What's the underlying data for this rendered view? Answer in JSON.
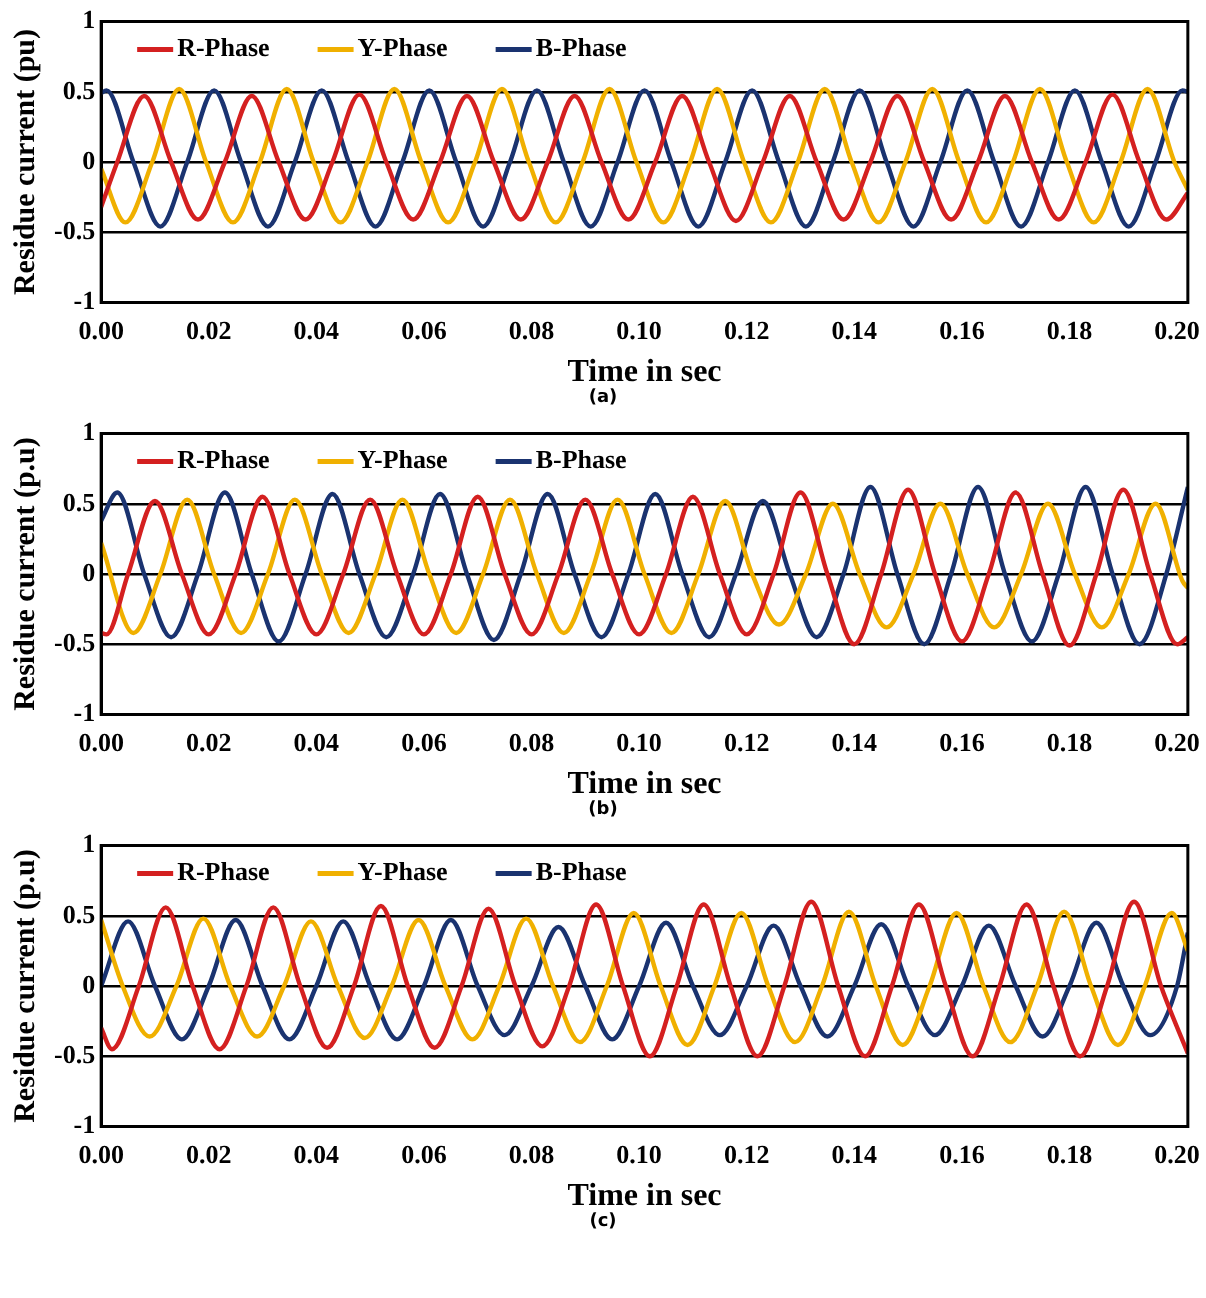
{
  "chart_data": [
    {
      "type": "line",
      "xlabel": "Time in sec",
      "ylabel": "Residue current (pu)",
      "annotations": [
        "(a)"
      ],
      "xlim": [
        0,
        0.202
      ],
      "ylim": [
        -1,
        1
      ],
      "xticks": [
        {
          "value": 0,
          "label": "0.00"
        },
        {
          "value": 0.02,
          "label": "0.02"
        },
        {
          "value": 0.04,
          "label": "0.04"
        },
        {
          "value": 0.06,
          "label": "0.06"
        },
        {
          "value": 0.08,
          "label": "0.08"
        },
        {
          "value": 0.1,
          "label": "0.10"
        },
        {
          "value": 0.12,
          "label": "0.12"
        },
        {
          "value": 0.14,
          "label": "0.14"
        },
        {
          "value": 0.16,
          "label": "0.16"
        },
        {
          "value": 0.18,
          "label": "0.18"
        },
        {
          "value": 0.2,
          "label": "0.20"
        }
      ],
      "yticks": [
        -1,
        -0.5,
        0,
        0.5,
        1
      ],
      "grid": "y",
      "legend": "top left",
      "marker": "none",
      "line_style": "solid",
      "series": [
        {
          "name": "R-Phase",
          "color": "#d42020",
          "x": [
            0,
            0.003,
            0.008,
            0.013,
            0.018,
            0.023,
            0.028,
            0.033,
            0.038,
            0.043,
            0.048,
            0.053,
            0.058,
            0.063,
            0.068,
            0.073,
            0.078,
            0.083,
            0.088,
            0.093,
            0.098,
            0.103,
            0.108,
            0.113,
            0.118,
            0.123,
            0.128,
            0.133,
            0.138,
            0.143,
            0.148,
            0.153,
            0.158,
            0.163,
            0.168,
            0.173,
            0.178,
            0.183,
            0.188,
            0.193,
            0.198,
            0.202
          ],
          "values": [
            -0.32,
            0,
            0.47,
            0,
            -0.41,
            0,
            0.47,
            0,
            -0.41,
            0,
            0.48,
            0,
            -0.41,
            0,
            0.47,
            0,
            -0.41,
            0,
            0.47,
            0,
            -0.41,
            0,
            0.47,
            0,
            -0.42,
            0,
            0.47,
            0,
            -0.41,
            0,
            0.47,
            0,
            -0.41,
            0,
            0.47,
            0,
            -0.41,
            0,
            0.48,
            0,
            -0.41,
            -0.22
          ]
        },
        {
          "name": "Y-Phase",
          "color": "#f0b000",
          "x": [
            0,
            0.0045,
            0.0095,
            0.0145,
            0.0195,
            0.0245,
            0.0295,
            0.0345,
            0.0395,
            0.0445,
            0.0495,
            0.0545,
            0.0595,
            0.0645,
            0.0695,
            0.0745,
            0.0795,
            0.0845,
            0.0895,
            0.0945,
            0.0995,
            0.1045,
            0.1095,
            0.1145,
            0.1195,
            0.1245,
            0.1295,
            0.1345,
            0.1395,
            0.1445,
            0.1495,
            0.1545,
            0.1595,
            0.1645,
            0.1695,
            0.1745,
            0.1795,
            0.1845,
            0.1895,
            0.1945,
            0.1995,
            0.202
          ],
          "values": [
            -0.05,
            -0.43,
            0,
            0.52,
            0,
            -0.43,
            0,
            0.52,
            0,
            -0.43,
            0,
            0.52,
            0,
            -0.43,
            0,
            0.52,
            0,
            -0.43,
            0,
            0.52,
            0,
            -0.43,
            0,
            0.52,
            0,
            -0.43,
            0,
            0.52,
            0,
            -0.43,
            0,
            0.52,
            0,
            -0.43,
            0,
            0.52,
            0,
            -0.43,
            0,
            0.52,
            0,
            -0.2
          ]
        },
        {
          "name": "B-Phase",
          "color": "#1a3370",
          "x": [
            0,
            0.001,
            0.006,
            0.011,
            0.016,
            0.021,
            0.026,
            0.031,
            0.036,
            0.041,
            0.046,
            0.051,
            0.056,
            0.061,
            0.066,
            0.071,
            0.076,
            0.081,
            0.086,
            0.091,
            0.096,
            0.101,
            0.106,
            0.111,
            0.116,
            0.121,
            0.126,
            0.131,
            0.136,
            0.141,
            0.146,
            0.151,
            0.156,
            0.161,
            0.166,
            0.171,
            0.176,
            0.181,
            0.186,
            0.191,
            0.196,
            0.201,
            0.202
          ],
          "values": [
            0.49,
            0.51,
            0,
            -0.46,
            0,
            0.51,
            0,
            -0.46,
            0,
            0.51,
            0,
            -0.46,
            0,
            0.51,
            0,
            -0.46,
            0,
            0.51,
            0,
            -0.46,
            0,
            0.51,
            0,
            -0.46,
            0,
            0.51,
            0,
            -0.46,
            0,
            0.51,
            0,
            -0.46,
            0,
            0.51,
            0,
            -0.46,
            0,
            0.51,
            0,
            -0.46,
            0,
            0.51,
            0.5
          ]
        }
      ]
    },
    {
      "type": "line",
      "xlabel": "Time in sec",
      "ylabel": "Residue current (p.u)",
      "annotations": [
        "(b)"
      ],
      "xlim": [
        0,
        0.202
      ],
      "ylim": [
        -1,
        1
      ],
      "xticks": [
        {
          "value": 0,
          "label": "0.00"
        },
        {
          "value": 0.02,
          "label": "0.02"
        },
        {
          "value": 0.04,
          "label": "0.04"
        },
        {
          "value": 0.06,
          "label": "0.06"
        },
        {
          "value": 0.08,
          "label": "0.08"
        },
        {
          "value": 0.1,
          "label": "0.10"
        },
        {
          "value": 0.12,
          "label": "0.12"
        },
        {
          "value": 0.14,
          "label": "0.14"
        },
        {
          "value": 0.16,
          "label": "0.16"
        },
        {
          "value": 0.18,
          "label": "0.18"
        },
        {
          "value": 0.2,
          "label": "0.20"
        }
      ],
      "yticks": [
        -1,
        -0.5,
        0,
        0.5,
        1
      ],
      "grid": "y",
      "legend": "top left",
      "marker": "none",
      "line_style": "solid",
      "series": [
        {
          "name": "R-Phase",
          "color": "#d42020",
          "x": [
            0,
            0.001,
            0.005,
            0.01,
            0.015,
            0.02,
            0.025,
            0.03,
            0.035,
            0.04,
            0.045,
            0.05,
            0.055,
            0.06,
            0.065,
            0.07,
            0.075,
            0.08,
            0.085,
            0.09,
            0.095,
            0.1,
            0.105,
            0.11,
            0.115,
            0.12,
            0.125,
            0.13,
            0.135,
            0.14,
            0.145,
            0.15,
            0.155,
            0.16,
            0.165,
            0.17,
            0.175,
            0.18,
            0.185,
            0.19,
            0.195,
            0.2,
            0.202
          ],
          "values": [
            -0.42,
            -0.43,
            0,
            0.52,
            0,
            -0.43,
            0,
            0.55,
            0,
            -0.43,
            0,
            0.53,
            0,
            -0.43,
            0,
            0.55,
            0,
            -0.43,
            0,
            0.53,
            0,
            -0.43,
            0,
            0.55,
            0,
            -0.43,
            0,
            0.58,
            0,
            -0.5,
            0,
            0.6,
            0,
            -0.48,
            0,
            0.58,
            0,
            -0.51,
            0,
            0.6,
            0,
            -0.5,
            -0.45
          ]
        },
        {
          "name": "Y-Phase",
          "color": "#f0b000",
          "x": [
            0,
            0.006,
            0.011,
            0.016,
            0.021,
            0.026,
            0.031,
            0.036,
            0.041,
            0.046,
            0.051,
            0.056,
            0.061,
            0.066,
            0.071,
            0.076,
            0.081,
            0.086,
            0.091,
            0.096,
            0.101,
            0.106,
            0.111,
            0.116,
            0.121,
            0.126,
            0.131,
            0.136,
            0.141,
            0.146,
            0.151,
            0.156,
            0.161,
            0.166,
            0.171,
            0.176,
            0.181,
            0.186,
            0.191,
            0.196,
            0.201,
            0.202
          ],
          "values": [
            0.22,
            -0.42,
            0,
            0.53,
            0,
            -0.42,
            0,
            0.53,
            0,
            -0.42,
            0,
            0.53,
            0,
            -0.42,
            0,
            0.53,
            0,
            -0.42,
            0,
            0.53,
            0,
            -0.42,
            0,
            0.52,
            0,
            -0.36,
            0,
            0.5,
            0,
            -0.38,
            0,
            0.5,
            0,
            -0.38,
            0,
            0.5,
            0,
            -0.38,
            0,
            0.5,
            -0.05,
            -0.1
          ]
        },
        {
          "name": "B-Phase",
          "color": "#1a3370",
          "x": [
            0,
            0.003,
            0.008,
            0.013,
            0.018,
            0.023,
            0.028,
            0.033,
            0.038,
            0.043,
            0.048,
            0.053,
            0.058,
            0.063,
            0.068,
            0.073,
            0.078,
            0.083,
            0.088,
            0.093,
            0.098,
            0.103,
            0.108,
            0.113,
            0.118,
            0.123,
            0.128,
            0.133,
            0.138,
            0.143,
            0.148,
            0.153,
            0.158,
            0.163,
            0.168,
            0.173,
            0.178,
            0.183,
            0.188,
            0.193,
            0.198,
            0.202
          ],
          "values": [
            0.38,
            0.58,
            0,
            -0.45,
            0,
            0.58,
            0,
            -0.48,
            0,
            0.57,
            0,
            -0.45,
            0,
            0.57,
            0,
            -0.47,
            0,
            0.57,
            0,
            -0.45,
            0,
            0.57,
            0,
            -0.45,
            0,
            0.52,
            0,
            -0.45,
            0,
            0.62,
            0,
            -0.5,
            0,
            0.62,
            0,
            -0.48,
            0,
            0.62,
            0,
            -0.5,
            0,
            0.62
          ]
        }
      ]
    },
    {
      "type": "line",
      "xlabel": "Time in sec",
      "ylabel": "Residue current (p.u)",
      "annotations": [
        "(c)"
      ],
      "xlim": [
        0,
        0.202
      ],
      "ylim": [
        -1,
        1
      ],
      "xticks": [
        {
          "value": 0,
          "label": "0.00"
        },
        {
          "value": 0.02,
          "label": "0.02"
        },
        {
          "value": 0.04,
          "label": "0.04"
        },
        {
          "value": 0.06,
          "label": "0.06"
        },
        {
          "value": 0.08,
          "label": "0.08"
        },
        {
          "value": 0.1,
          "label": "0.10"
        },
        {
          "value": 0.12,
          "label": "0.12"
        },
        {
          "value": 0.14,
          "label": "0.14"
        },
        {
          "value": 0.16,
          "label": "0.16"
        },
        {
          "value": 0.18,
          "label": "0.18"
        },
        {
          "value": 0.2,
          "label": "0.20"
        }
      ],
      "yticks": [
        -1,
        -0.5,
        0,
        0.5,
        1
      ],
      "grid": "y",
      "legend": "top left",
      "marker": "none",
      "line_style": "solid",
      "series": [
        {
          "name": "R-Phase",
          "color": "#d42020",
          "x": [
            0,
            0.002,
            0.007,
            0.012,
            0.017,
            0.022,
            0.027,
            0.032,
            0.037,
            0.042,
            0.047,
            0.052,
            0.057,
            0.062,
            0.067,
            0.072,
            0.077,
            0.082,
            0.087,
            0.092,
            0.097,
            0.102,
            0.107,
            0.112,
            0.117,
            0.122,
            0.127,
            0.132,
            0.137,
            0.142,
            0.147,
            0.152,
            0.157,
            0.162,
            0.167,
            0.172,
            0.177,
            0.182,
            0.187,
            0.192,
            0.197,
            0.202
          ],
          "values": [
            -0.3,
            -0.45,
            0,
            0.56,
            0,
            -0.45,
            0,
            0.56,
            0,
            -0.44,
            0,
            0.57,
            0,
            -0.44,
            0,
            0.55,
            0,
            -0.43,
            0,
            0.58,
            0,
            -0.5,
            0,
            0.58,
            0,
            -0.5,
            0,
            0.6,
            0,
            -0.5,
            0,
            0.58,
            0,
            -0.5,
            0,
            0.58,
            0,
            -0.5,
            0,
            0.6,
            0,
            -0.48
          ]
        },
        {
          "name": "Y-Phase",
          "color": "#f0b000",
          "x": [
            0,
            0.004,
            0.009,
            0.014,
            0.019,
            0.024,
            0.029,
            0.034,
            0.039,
            0.044,
            0.049,
            0.054,
            0.059,
            0.064,
            0.069,
            0.074,
            0.079,
            0.084,
            0.089,
            0.094,
            0.099,
            0.104,
            0.109,
            0.114,
            0.119,
            0.124,
            0.129,
            0.134,
            0.139,
            0.144,
            0.149,
            0.154,
            0.159,
            0.164,
            0.169,
            0.174,
            0.179,
            0.184,
            0.189,
            0.194,
            0.199,
            0.202
          ],
          "values": [
            0.47,
            0,
            -0.36,
            0,
            0.48,
            0,
            -0.36,
            0,
            0.46,
            0,
            -0.37,
            0,
            0.47,
            0,
            -0.38,
            0,
            0.48,
            0,
            -0.4,
            0,
            0.52,
            0,
            -0.42,
            0,
            0.52,
            0,
            -0.4,
            0,
            0.53,
            0,
            -0.42,
            0,
            0.52,
            0,
            -0.4,
            0,
            0.53,
            0,
            -0.42,
            0,
            0.52,
            0.25
          ]
        },
        {
          "name": "B-Phase",
          "color": "#1a3370",
          "x": [
            0,
            0.005,
            0.01,
            0.015,
            0.02,
            0.025,
            0.03,
            0.035,
            0.04,
            0.045,
            0.05,
            0.055,
            0.06,
            0.065,
            0.07,
            0.075,
            0.08,
            0.085,
            0.09,
            0.095,
            0.1,
            0.105,
            0.11,
            0.115,
            0.12,
            0.125,
            0.13,
            0.135,
            0.14,
            0.145,
            0.15,
            0.155,
            0.16,
            0.165,
            0.17,
            0.175,
            0.18,
            0.185,
            0.19,
            0.195,
            0.2,
            0.202
          ],
          "values": [
            0,
            0.46,
            0,
            -0.38,
            0,
            0.47,
            0,
            -0.38,
            0,
            0.46,
            0,
            -0.38,
            0,
            0.47,
            0,
            -0.35,
            0,
            0.42,
            0,
            -0.38,
            0,
            0.45,
            0,
            -0.35,
            0,
            0.43,
            0,
            -0.36,
            0,
            0.44,
            0,
            -0.35,
            0,
            0.43,
            0,
            -0.36,
            0,
            0.45,
            0,
            -0.35,
            0,
            0.38
          ]
        }
      ]
    }
  ]
}
